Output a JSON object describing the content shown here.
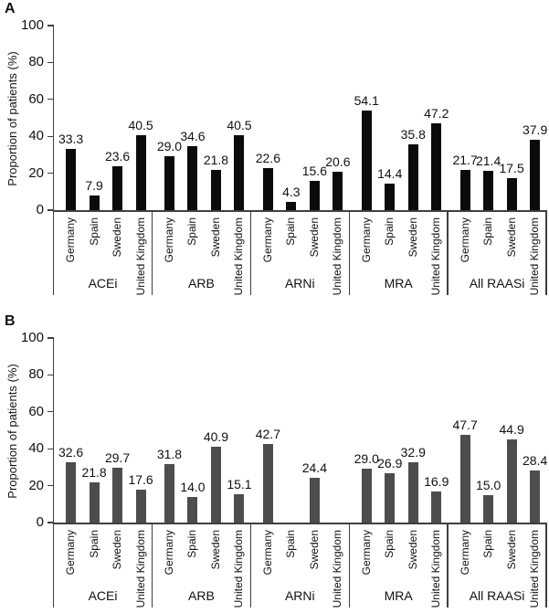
{
  "figure": {
    "background_color": "#ffffff",
    "text_color": "#111111",
    "axis_color": "#3f3f3f"
  },
  "chart_data": [
    {
      "panel": "A",
      "type": "bar",
      "ylabel": "Proportion of patients (%)",
      "ylim": [
        0,
        100
      ],
      "yticks": [
        0,
        20,
        40,
        60,
        80,
        100
      ],
      "bar_color": "#0b0b0b",
      "grid": false,
      "legend": "none",
      "categories": [
        "Germany",
        "Spain",
        "Sweden",
        "United Kingdom"
      ],
      "groups": [
        {
          "label": "ACEi",
          "values": [
            33.3,
            7.9,
            23.6,
            40.5
          ]
        },
        {
          "label": "ARB",
          "values": [
            29.0,
            34.6,
            21.8,
            40.5
          ]
        },
        {
          "label": "ARNi",
          "values": [
            22.6,
            4.3,
            15.6,
            20.6
          ]
        },
        {
          "label": "MRA",
          "values": [
            54.1,
            14.4,
            35.8,
            47.2
          ]
        },
        {
          "label": "All RAASi",
          "values": [
            21.7,
            21.4,
            17.5,
            37.9
          ]
        }
      ]
    },
    {
      "panel": "B",
      "type": "bar",
      "ylabel": "Proportion of patients (%)",
      "ylim": [
        0,
        100
      ],
      "yticks": [
        0,
        20,
        40,
        60,
        80,
        100
      ],
      "bar_color": "#4d4d4d",
      "grid": false,
      "legend": "none",
      "categories": [
        "Germany",
        "Spain",
        "Sweden",
        "United Kingdom"
      ],
      "groups": [
        {
          "label": "ACEi",
          "values": [
            32.6,
            21.8,
            29.7,
            17.6
          ]
        },
        {
          "label": "ARB",
          "values": [
            31.8,
            14.0,
            40.9,
            15.1
          ]
        },
        {
          "label": "ARNi",
          "values": [
            42.7,
            null,
            24.4,
            null
          ]
        },
        {
          "label": "MRA",
          "values": [
            29.0,
            26.9,
            32.9,
            16.9
          ]
        },
        {
          "label": "All RAASi",
          "values": [
            47.7,
            15.0,
            44.9,
            28.4
          ]
        }
      ]
    }
  ]
}
